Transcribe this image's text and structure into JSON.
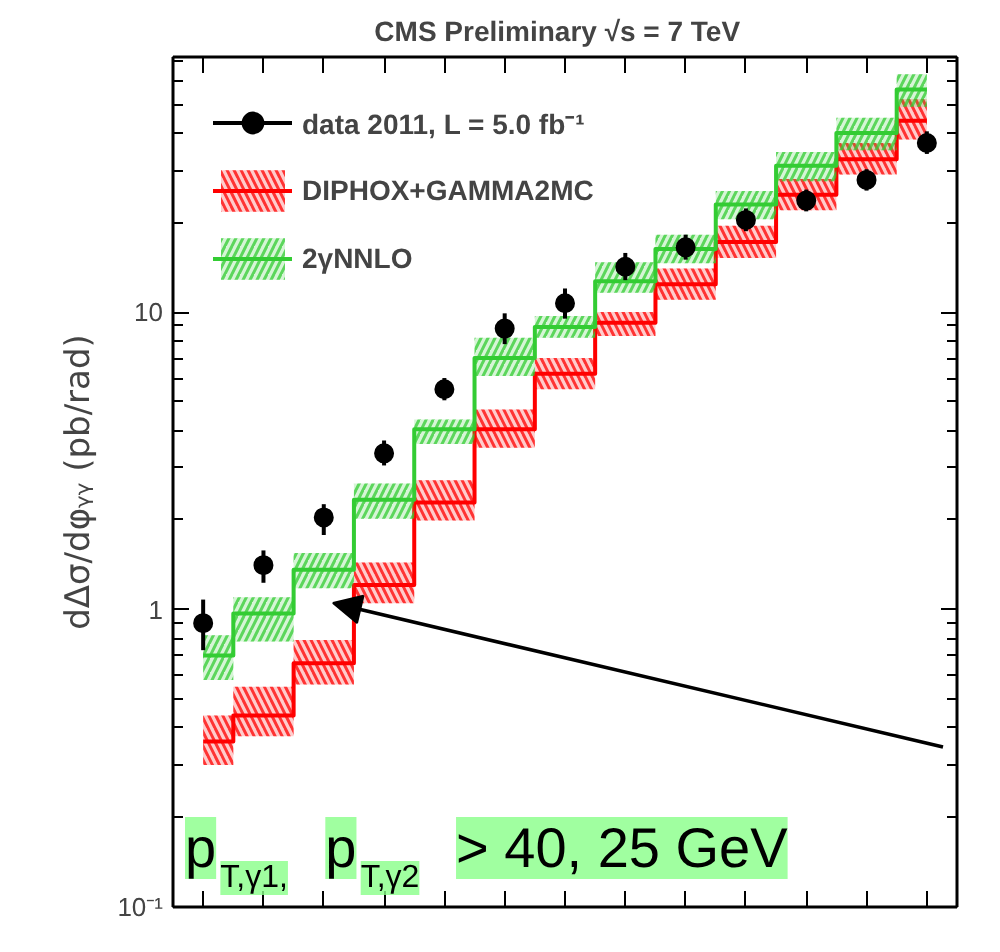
{
  "chart_data": {
    "type": "scatter",
    "title": "CMS Preliminary   √s = 7 TeV",
    "ylabel": "dΔσ/dφᵧᵧ (pb/rad)",
    "log": "y",
    "ylim": [
      0.1,
      72
    ],
    "yticks": [
      {
        "value": 0.1,
        "label": "10⁻¹"
      },
      1,
      10
    ],
    "tick_labels": "y",
    "legend": "top left",
    "categories": [
      null,
      null,
      null,
      null,
      null,
      null,
      null,
      null,
      null,
      null,
      null,
      null,
      null
    ],
    "annotations": [
      "p$_{T,γ1,}$ p$_{T,γ2}$ > 40, 25 GeV"
    ],
    "series": [
      {
        "name": "data 2011, L = 5.0 fb⁻¹",
        "marker": "circle",
        "color": "#000000",
        "values": [
          0.9,
          1.41,
          2.04,
          3.35,
          5.5,
          8.8,
          10.7,
          14.2,
          16.5,
          20.4,
          23.7,
          27.8,
          37
        ],
        "errors": [
          [
            0.73,
            1.08
          ],
          [
            1.23,
            1.58
          ],
          [
            1.78,
            2.26
          ],
          [
            3.05,
            3.7
          ],
          [
            5.05,
            6.0
          ],
          [
            7.8,
            9.9
          ],
          [
            9.5,
            12
          ],
          [
            12.8,
            15.8
          ],
          [
            15,
            18.2
          ],
          [
            18.7,
            22.3
          ],
          [
            21.8,
            25.8
          ],
          [
            25.6,
            30.2
          ],
          [
            34,
            40.5
          ]
        ]
      },
      {
        "name": "DIPHOX+GAMMA2MC",
        "type": "step",
        "color": "#ff0000",
        "values": [
          0.36,
          0.44,
          0.66,
          1.21,
          2.29,
          4.04,
          6.2,
          9.2,
          12.4,
          17.2,
          24.8,
          32.6,
          44
        ],
        "lower": [
          0.3,
          0.375,
          0.56,
          1.05,
          1.99,
          3.5,
          5.5,
          8.3,
          11,
          15.2,
          22,
          29,
          38
        ],
        "upper": [
          0.44,
          0.55,
          0.79,
          1.44,
          2.72,
          4.7,
          7.0,
          10,
          14,
          19.5,
          28,
          37,
          52
        ]
      },
      {
        "name": "2γNNLO",
        "type": "step",
        "color": "#33cc33",
        "values": [
          0.7,
          0.97,
          1.36,
          2.34,
          4.04,
          7.0,
          8.9,
          12.7,
          16.3,
          23,
          31,
          40,
          56
        ],
        "lower": [
          0.58,
          0.78,
          1.18,
          2.02,
          3.6,
          6.1,
          8.2,
          11.6,
          14.6,
          20.5,
          27.5,
          35,
          49
        ],
        "upper": [
          0.82,
          1.1,
          1.55,
          2.65,
          4.35,
          8.2,
          9.7,
          14.7,
          18.2,
          25.5,
          34.5,
          45,
          63
        ]
      }
    ]
  }
}
